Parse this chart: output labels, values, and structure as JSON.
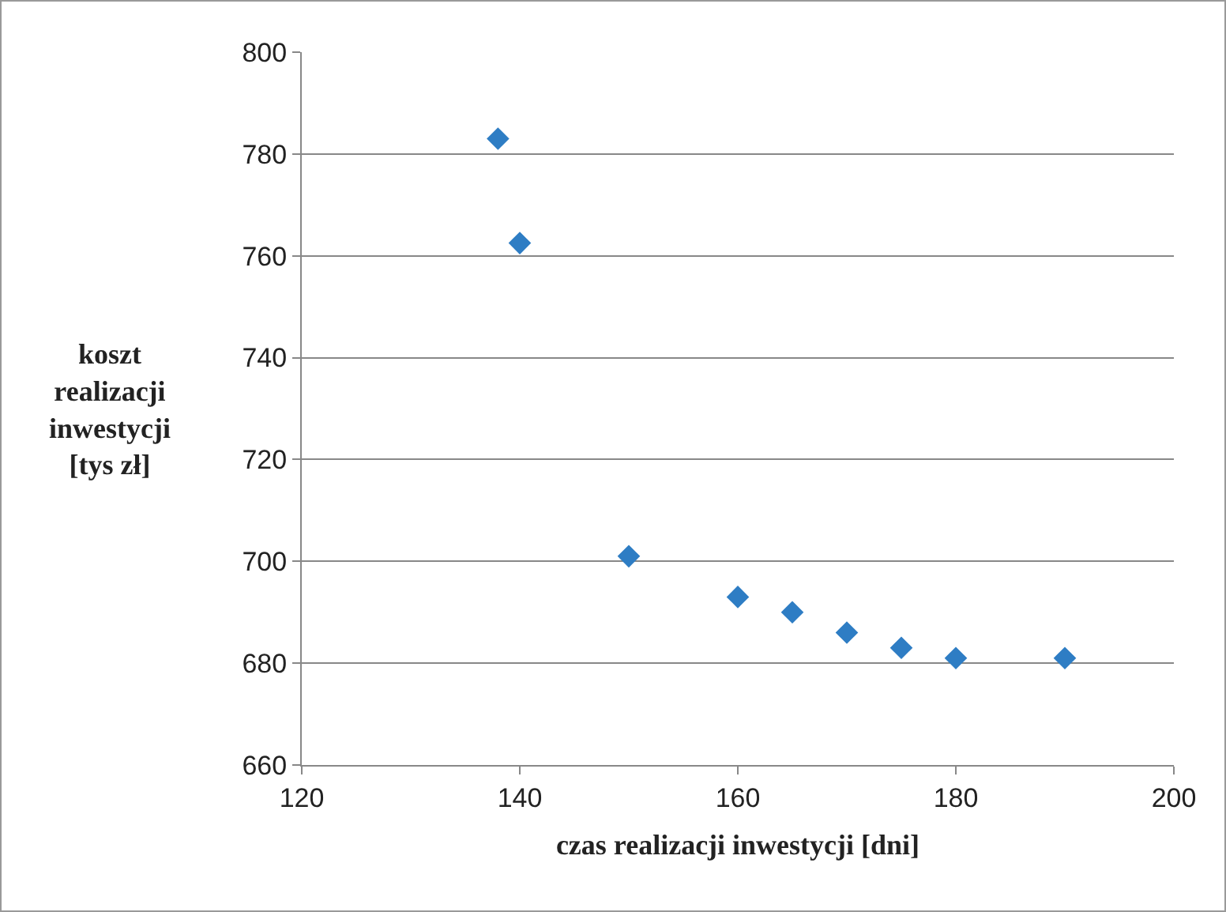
{
  "chart_data": {
    "type": "scatter",
    "xlabel": "czas realizacji inwestycji [dni]",
    "ylabel": "koszt realizacji inwestycji [tys zł]",
    "x": [
      138,
      140,
      150,
      160,
      165,
      170,
      175,
      180,
      190
    ],
    "values": [
      783,
      762.5,
      701,
      693,
      690,
      686,
      683,
      681,
      681
    ],
    "color": "#2e7dc4",
    "marker": "diamond",
    "grid": "y",
    "xlim": [
      120,
      200
    ],
    "xticks": [
      120,
      140,
      160,
      180,
      200
    ],
    "ylim": [
      660,
      800
    ],
    "yticks": [
      660,
      680,
      700,
      720,
      740,
      760,
      780,
      800
    ]
  }
}
